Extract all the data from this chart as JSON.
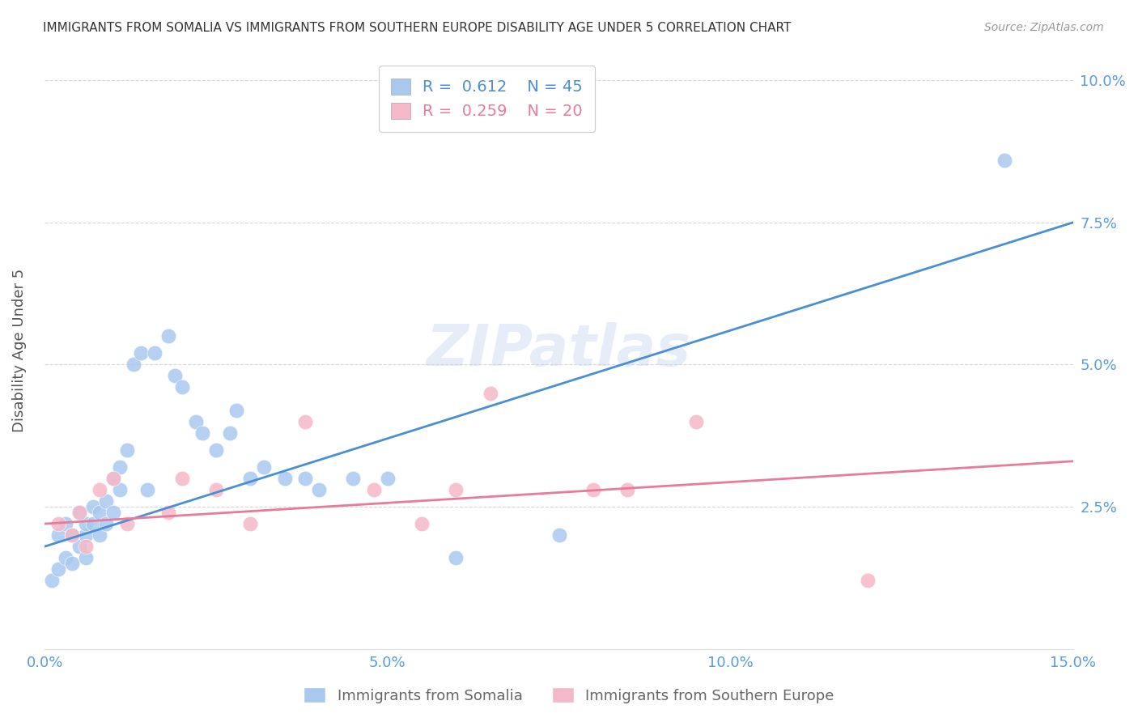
{
  "title": "IMMIGRANTS FROM SOMALIA VS IMMIGRANTS FROM SOUTHERN EUROPE DISABILITY AGE UNDER 5 CORRELATION CHART",
  "source": "Source: ZipAtlas.com",
  "ylabel": "Disability Age Under 5",
  "xlim": [
    0.0,
    0.15
  ],
  "ylim": [
    0.0,
    0.105
  ],
  "yticks": [
    0.025,
    0.05,
    0.075,
    0.1
  ],
  "ytick_labels": [
    "2.5%",
    "5.0%",
    "7.5%",
    "10.0%"
  ],
  "xticks": [
    0.0,
    0.05,
    0.1,
    0.15
  ],
  "xtick_labels": [
    "0.0%",
    "5.0%",
    "10.0%",
    "15.0%"
  ],
  "somalia_R": 0.612,
  "somalia_N": 45,
  "southern_europe_R": 0.259,
  "southern_europe_N": 20,
  "somalia_color": "#A8C8EE",
  "southern_europe_color": "#F5B8C8",
  "somalia_line_color": "#4A8FD4",
  "southern_europe_line_color": "#E87A9A",
  "legend_label_somalia": "Immigrants from Somalia",
  "legend_label_southern": "Immigrants from Southern Europe",
  "background_color": "#FFFFFF",
  "grid_color": "#CCCCCC",
  "axis_label_color": "#5A9BDB",
  "somalia_x": [
    0.001,
    0.002,
    0.002,
    0.003,
    0.003,
    0.004,
    0.004,
    0.005,
    0.005,
    0.006,
    0.006,
    0.006,
    0.007,
    0.007,
    0.008,
    0.008,
    0.009,
    0.009,
    0.01,
    0.01,
    0.011,
    0.011,
    0.012,
    0.013,
    0.014,
    0.015,
    0.016,
    0.018,
    0.019,
    0.02,
    0.022,
    0.023,
    0.025,
    0.027,
    0.028,
    0.03,
    0.032,
    0.035,
    0.038,
    0.04,
    0.045,
    0.05,
    0.06,
    0.075,
    0.14
  ],
  "somalia_y": [
    0.012,
    0.014,
    0.02,
    0.016,
    0.022,
    0.015,
    0.02,
    0.018,
    0.024,
    0.02,
    0.022,
    0.016,
    0.022,
    0.025,
    0.02,
    0.024,
    0.022,
    0.026,
    0.024,
    0.03,
    0.028,
    0.032,
    0.035,
    0.05,
    0.052,
    0.028,
    0.052,
    0.055,
    0.048,
    0.046,
    0.04,
    0.038,
    0.035,
    0.038,
    0.042,
    0.03,
    0.032,
    0.03,
    0.03,
    0.028,
    0.03,
    0.03,
    0.016,
    0.02,
    0.086
  ],
  "southern_europe_x": [
    0.002,
    0.004,
    0.005,
    0.006,
    0.008,
    0.01,
    0.012,
    0.018,
    0.02,
    0.025,
    0.03,
    0.038,
    0.048,
    0.055,
    0.06,
    0.065,
    0.08,
    0.085,
    0.095,
    0.12
  ],
  "southern_europe_y": [
    0.022,
    0.02,
    0.024,
    0.018,
    0.028,
    0.03,
    0.022,
    0.024,
    0.03,
    0.028,
    0.022,
    0.04,
    0.028,
    0.022,
    0.028,
    0.045,
    0.028,
    0.028,
    0.04,
    0.012
  ],
  "somalia_trend_x": [
    0.0,
    0.15
  ],
  "somalia_trend_y": [
    0.018,
    0.075
  ],
  "southern_europe_trend_x": [
    0.0,
    0.15
  ],
  "southern_europe_trend_y": [
    0.022,
    0.033
  ]
}
